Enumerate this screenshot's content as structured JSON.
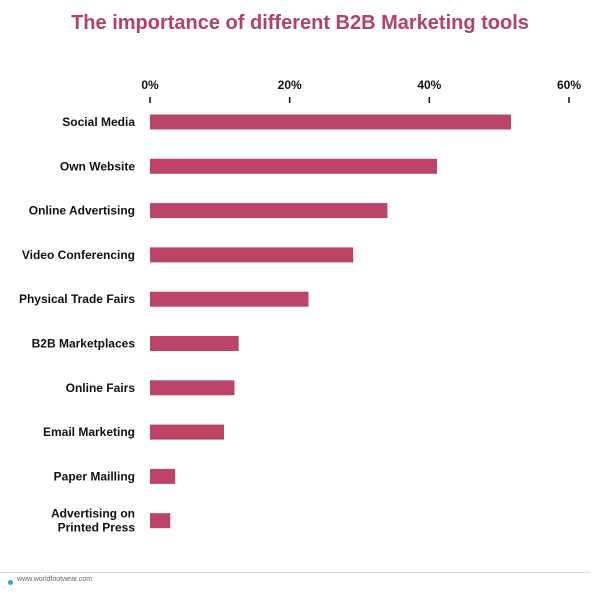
{
  "chart_data": {
    "type": "bar",
    "orientation": "horizontal",
    "title": "The importance of different B2B Marketing tools",
    "xlabel": "",
    "ylabel": "",
    "axis_position": "top",
    "xlim": [
      0,
      60
    ],
    "xticks": [
      "0%",
      "20%",
      "40%",
      "60%"
    ],
    "tick_values": [
      0,
      20,
      40,
      60
    ],
    "categories": [
      [
        "Social Media"
      ],
      [
        "Own Website"
      ],
      [
        "Online Advertising"
      ],
      [
        "Video Conferencing"
      ],
      [
        "Physical Trade Fairs"
      ],
      [
        "B2B Marketplaces"
      ],
      [
        "Online Fairs"
      ],
      [
        "Email Marketing"
      ],
      [
        "Paper Mailling"
      ],
      [
        "Advertising on",
        "Printed Press"
      ]
    ],
    "values": [
      51.7,
      41.1,
      34.0,
      29.1,
      22.7,
      12.7,
      12.1,
      10.6,
      3.6,
      2.9
    ],
    "grid": false,
    "legend": "none",
    "bar_color": "#bb4467",
    "title_color": "#b5406a"
  },
  "footer": {
    "source": "www.worldfootwear.com"
  }
}
